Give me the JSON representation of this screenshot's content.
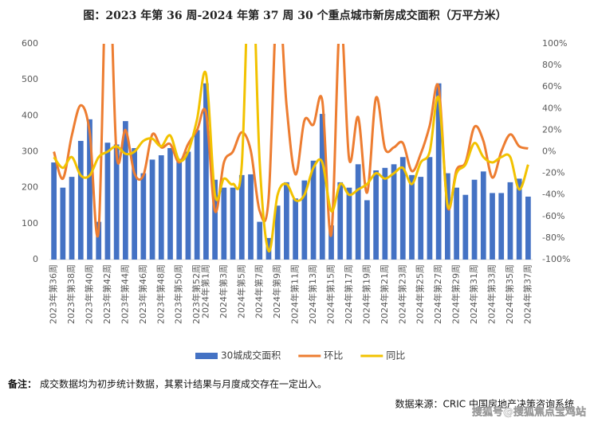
{
  "chart_data": {
    "type": "bar-line",
    "title": "图：2023 年第 36 周-2024 年第 37 周 30 个重点城市新房成交面积（万平方米）",
    "categories": [
      "2023年第36周",
      null,
      "2023年第38周",
      null,
      "2023年第40周",
      null,
      "2023年第42周",
      null,
      "2023年第44周",
      null,
      "2023年第46周",
      null,
      "2023年第48周",
      null,
      "2023年第50周",
      null,
      "2023年第52周",
      "2024年第1周",
      null,
      "2024年第3周",
      null,
      "2024年第5周",
      null,
      "2024年第7周",
      null,
      "2024年第9周",
      null,
      "2024年第11周",
      null,
      "2024年第13周",
      null,
      "2024年第15周",
      null,
      "2024年第17周",
      null,
      "2024年第19周",
      null,
      "2024年第21周",
      null,
      "2024年第23周",
      null,
      "2024年第25周",
      null,
      "2024年第27周",
      null,
      "2024年第29周",
      null,
      "2024年第31周",
      null,
      "2024年第33周",
      null,
      "2024年第35周",
      null,
      "2024年第37周"
    ],
    "series": [
      {
        "name": "30城成交面积",
        "kind": "bar",
        "color": "#4472c4",
        "values": [
          270,
          200,
          230,
          330,
          390,
          105,
          325,
          320,
          385,
          310,
          240,
          278,
          290,
          310,
          280,
          300,
          360,
          490,
          222,
          200,
          200,
          235,
          237,
          105,
          60,
          150,
          215,
          170,
          220,
          275,
          405,
          95,
          215,
          200,
          265,
          165,
          248,
          255,
          265,
          285,
          235,
          230,
          285,
          490,
          240,
          200,
          180,
          222,
          245,
          185,
          185,
          215,
          225,
          175
        ]
      },
      {
        "name": "环比",
        "kind": "line",
        "axis": "y2",
        "color": "#ed7d31",
        "values": [
          0,
          -25,
          15,
          43,
          18,
          -73,
          200,
          -2,
          20,
          -20,
          -22,
          16,
          4,
          7,
          -10,
          7,
          20,
          36,
          -55,
          -10,
          0,
          18,
          1,
          -55,
          -43,
          150,
          43,
          -21,
          29,
          25,
          47,
          -77,
          126,
          -7,
          32,
          -38,
          50,
          3,
          4,
          8,
          -18,
          -2,
          24,
          60,
          -51,
          -17,
          -10,
          23,
          10,
          -24,
          0,
          16,
          5,
          3
        ]
      },
      {
        "name": "同比",
        "kind": "line",
        "axis": "y2",
        "color": "#f2c200",
        "values": [
          -5,
          -15,
          -5,
          -22,
          -22,
          -5,
          0,
          5,
          -2,
          0,
          10,
          12,
          5,
          15,
          -8,
          0,
          30,
          72,
          -40,
          -25,
          -30,
          -12,
          200,
          -10,
          -92,
          -40,
          -30,
          -45,
          -40,
          -15,
          -10,
          -55,
          -30,
          -40,
          -35,
          -30,
          -20,
          -25,
          -20,
          -15,
          -30,
          -10,
          0,
          50,
          -50,
          -20,
          -12,
          8,
          -5,
          -10,
          -5,
          -5,
          -35,
          -12
        ]
      }
    ],
    "ylim": [
      0,
      600
    ],
    "yticks": [
      0,
      100,
      200,
      300,
      400,
      500,
      600
    ],
    "y2lim": [
      -100,
      100
    ],
    "y2ticks": [
      {
        "value": -100,
        "label": "-100%"
      },
      {
        "value": -80,
        "label": "-80%"
      },
      {
        "value": -60,
        "label": "-60%"
      },
      {
        "value": -40,
        "label": "-40%"
      },
      {
        "value": -20,
        "label": "-20%"
      },
      {
        "value": 0,
        "label": "0%"
      },
      {
        "value": 20,
        "label": "20%"
      },
      {
        "value": 40,
        "label": "40%"
      },
      {
        "value": 60,
        "label": "60%"
      },
      {
        "value": 80,
        "label": "80%"
      },
      {
        "value": 100,
        "label": "100%"
      }
    ],
    "legend": "bottom"
  },
  "footer": {
    "note_label": "备注：",
    "note": "成交数据均为初步统计数据，其累计结果与月度成交存在一定出入。",
    "source": "数据来源：CRIC 中国房地产决策咨询系统",
    "watermark": "搜狐号@搜狐焦点宝鸡站"
  }
}
